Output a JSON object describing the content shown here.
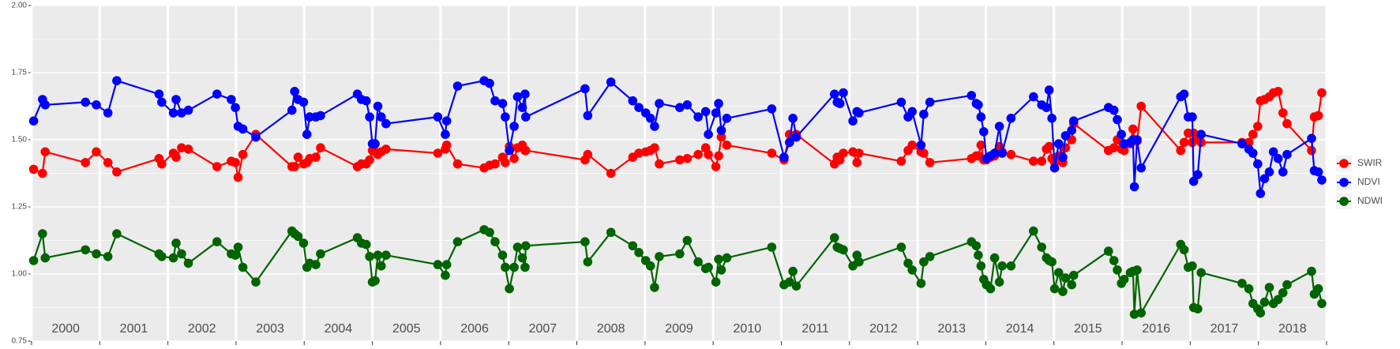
{
  "chart_data": {
    "type": "line",
    "xlim": [
      2000,
      2019
    ],
    "xticks": [
      2000,
      2001,
      2002,
      2003,
      2004,
      2005,
      2006,
      2007,
      2008,
      2009,
      2010,
      2011,
      2012,
      2013,
      2014,
      2015,
      2016,
      2017,
      2018,
      2019
    ],
    "ylim": [
      0.75,
      2.0
    ],
    "yticks": [
      {
        "value": 0.75,
        "label": "0.75"
      },
      {
        "value": 1.0,
        "label": "1.00"
      },
      {
        "value": 1.25,
        "label": "1.25"
      },
      {
        "value": 1.5,
        "label": "1.50"
      },
      {
        "value": 1.75,
        "label": "1.75"
      },
      {
        "value": 2.0,
        "label": "2.00"
      }
    ],
    "year_labels": [
      "2000",
      "2001",
      "2002",
      "2003",
      "2004",
      "2005",
      "2006",
      "2007",
      "2008",
      "2009",
      "2010",
      "2011",
      "2012",
      "2013",
      "2014",
      "2015",
      "2016",
      "2017",
      "2018"
    ],
    "grid": true,
    "legend": "right",
    "x": [
      2000.03,
      2000.16,
      2000.2,
      2000.79,
      2000.95,
      2001.12,
      2001.25,
      2001.87,
      2001.91,
      2002.08,
      2002.12,
      2002.2,
      2002.3,
      2002.72,
      2002.93,
      2002.99,
      2003.03,
      2003.1,
      2003.29,
      2003.82,
      2003.86,
      2003.91,
      2003.99,
      2004.04,
      2004.08,
      2004.17,
      2004.24,
      2004.78,
      2004.84,
      2004.91,
      2004.96,
      2005.0,
      2005.04,
      2005.08,
      2005.13,
      2005.2,
      2005.96,
      2006.07,
      2006.09,
      2006.25,
      2006.64,
      2006.72,
      2006.8,
      2006.91,
      2006.95,
      2007.01,
      2007.08,
      2007.13,
      2007.2,
      2007.24,
      2007.25,
      2008.12,
      2008.16,
      2008.5,
      2008.82,
      2008.91,
      2009.01,
      2009.08,
      2009.14,
      2009.21,
      2009.51,
      2009.62,
      2009.78,
      2009.89,
      2009.93,
      2010.04,
      2010.08,
      2010.12,
      2010.2,
      2010.86,
      2011.04,
      2011.12,
      2011.17,
      2011.22,
      2011.78,
      2011.82,
      2011.86,
      2011.91,
      2012.05,
      2012.11,
      2012.14,
      2012.76,
      2012.86,
      2012.92,
      2013.05,
      2013.09,
      2013.18,
      2013.79,
      2013.86,
      2013.89,
      2013.93,
      2013.97,
      2014.01,
      2014.07,
      2014.13,
      2014.2,
      2014.24,
      2014.37,
      2014.7,
      2014.82,
      2014.89,
      2014.93,
      2014.97,
      2015.01,
      2015.07,
      2015.13,
      2015.17,
      2015.26,
      2015.29,
      2015.8,
      2015.88,
      2015.93,
      2015.99,
      2016.03,
      2016.12,
      2016.16,
      2016.18,
      2016.22,
      2016.28,
      2016.86,
      2016.91,
      2016.97,
      2017.03,
      2017.05,
      2017.11,
      2017.16,
      2017.76,
      2017.86,
      2017.92,
      2017.99,
      2018.03,
      2018.09,
      2018.16,
      2018.22,
      2018.29,
      2018.36,
      2018.42,
      2018.78,
      2018.82,
      2018.88,
      2018.93
    ],
    "series": [
      {
        "name": "SWIR",
        "color": "#ff0000",
        "values": [
          1.39,
          1.375,
          1.455,
          1.415,
          1.455,
          1.415,
          1.38,
          1.43,
          1.41,
          1.45,
          1.435,
          1.47,
          1.465,
          1.4,
          1.42,
          1.415,
          1.36,
          1.445,
          1.52,
          1.4,
          1.4,
          1.435,
          1.41,
          1.415,
          1.43,
          1.435,
          1.47,
          1.4,
          1.41,
          1.41,
          1.425,
          1.46,
          1.455,
          1.445,
          1.455,
          1.465,
          1.45,
          1.465,
          1.48,
          1.41,
          1.395,
          1.405,
          1.41,
          1.435,
          1.415,
          1.475,
          1.43,
          1.47,
          1.48,
          1.46,
          1.46,
          1.425,
          1.445,
          1.375,
          1.435,
          1.45,
          1.455,
          1.46,
          1.47,
          1.41,
          1.425,
          1.43,
          1.445,
          1.47,
          1.445,
          1.4,
          1.44,
          1.51,
          1.48,
          1.45,
          1.425,
          1.52,
          1.51,
          1.52,
          1.41,
          1.435,
          1.425,
          1.45,
          1.455,
          1.415,
          1.45,
          1.42,
          1.46,
          1.48,
          1.455,
          1.45,
          1.415,
          1.43,
          1.44,
          1.44,
          1.48,
          1.425,
          1.425,
          1.435,
          1.44,
          1.475,
          1.455,
          1.445,
          1.42,
          1.42,
          1.465,
          1.475,
          1.43,
          1.415,
          1.44,
          1.415,
          1.47,
          1.5,
          1.56,
          1.46,
          1.47,
          1.5,
          1.465,
          1.46,
          1.485,
          1.54,
          1.5,
          1.495,
          1.625,
          1.46,
          1.49,
          1.525,
          1.49,
          1.525,
          1.51,
          1.49,
          1.49,
          1.49,
          1.52,
          1.55,
          1.645,
          1.65,
          1.66,
          1.675,
          1.68,
          1.6,
          1.56,
          1.46,
          1.585,
          1.59,
          1.675
        ]
      },
      {
        "name": "NDVI",
        "color": "#0000ff",
        "values": [
          1.57,
          1.65,
          1.63,
          1.64,
          1.63,
          1.6,
          1.72,
          1.67,
          1.64,
          1.6,
          1.65,
          1.6,
          1.61,
          1.67,
          1.65,
          1.62,
          1.55,
          1.54,
          1.51,
          1.61,
          1.68,
          1.65,
          1.64,
          1.52,
          1.585,
          1.585,
          1.59,
          1.67,
          1.65,
          1.645,
          1.585,
          1.485,
          1.485,
          1.625,
          1.585,
          1.56,
          1.585,
          1.52,
          1.57,
          1.7,
          1.72,
          1.71,
          1.645,
          1.635,
          1.585,
          1.46,
          1.55,
          1.66,
          1.62,
          1.67,
          1.585,
          1.69,
          1.59,
          1.715,
          1.645,
          1.62,
          1.6,
          1.58,
          1.55,
          1.635,
          1.62,
          1.63,
          1.585,
          1.605,
          1.52,
          1.6,
          1.635,
          1.535,
          1.58,
          1.615,
          1.435,
          1.49,
          1.58,
          1.51,
          1.67,
          1.64,
          1.635,
          1.675,
          1.57,
          1.605,
          1.6,
          1.64,
          1.585,
          1.605,
          1.48,
          1.595,
          1.64,
          1.665,
          1.635,
          1.63,
          1.585,
          1.53,
          1.43,
          1.44,
          1.45,
          1.55,
          1.45,
          1.58,
          1.66,
          1.63,
          1.62,
          1.685,
          1.58,
          1.395,
          1.485,
          1.435,
          1.515,
          1.535,
          1.57,
          1.62,
          1.61,
          1.575,
          1.52,
          1.485,
          1.49,
          1.5,
          1.325,
          1.5,
          1.395,
          1.66,
          1.67,
          1.585,
          1.585,
          1.345,
          1.37,
          1.52,
          1.485,
          1.465,
          1.45,
          1.41,
          1.3,
          1.355,
          1.38,
          1.455,
          1.43,
          1.38,
          1.445,
          1.505,
          1.385,
          1.38,
          1.35
        ]
      },
      {
        "name": "NDWI",
        "color": "#006400",
        "values": [
          1.05,
          1.15,
          1.06,
          1.09,
          1.075,
          1.065,
          1.15,
          1.075,
          1.065,
          1.06,
          1.115,
          1.075,
          1.04,
          1.12,
          1.075,
          1.07,
          1.1,
          1.025,
          0.97,
          1.16,
          1.15,
          1.14,
          1.115,
          1.025,
          1.04,
          1.035,
          1.075,
          1.135,
          1.115,
          1.11,
          1.065,
          0.97,
          0.975,
          1.07,
          1.03,
          1.07,
          1.035,
          0.995,
          1.035,
          1.12,
          1.165,
          1.155,
          1.12,
          1.07,
          1.025,
          0.945,
          1.025,
          1.1,
          1.06,
          1.025,
          1.105,
          1.12,
          1.045,
          1.155,
          1.105,
          1.08,
          1.05,
          1.03,
          0.95,
          1.065,
          1.075,
          1.125,
          1.045,
          1.02,
          1.025,
          0.97,
          1.055,
          1.015,
          1.06,
          1.1,
          0.96,
          0.97,
          1.01,
          0.955,
          1.135,
          1.1,
          1.095,
          1.09,
          1.03,
          1.07,
          1.045,
          1.1,
          1.04,
          1.015,
          0.965,
          1.045,
          1.065,
          1.12,
          1.105,
          1.07,
          1.03,
          0.98,
          0.96,
          0.945,
          1.06,
          0.97,
          1.03,
          1.03,
          1.16,
          1.1,
          1.06,
          1.05,
          1.045,
          0.945,
          1.005,
          0.935,
          0.985,
          0.96,
          0.995,
          1.085,
          1.05,
          1.015,
          0.965,
          0.98,
          1.005,
          1.01,
          0.85,
          1.015,
          0.855,
          1.11,
          1.09,
          1.025,
          1.03,
          0.875,
          0.87,
          1.005,
          0.965,
          0.945,
          0.89,
          0.87,
          0.855,
          0.895,
          0.95,
          0.89,
          0.905,
          0.93,
          0.96,
          1.01,
          0.925,
          0.945,
          0.89
        ]
      }
    ]
  }
}
